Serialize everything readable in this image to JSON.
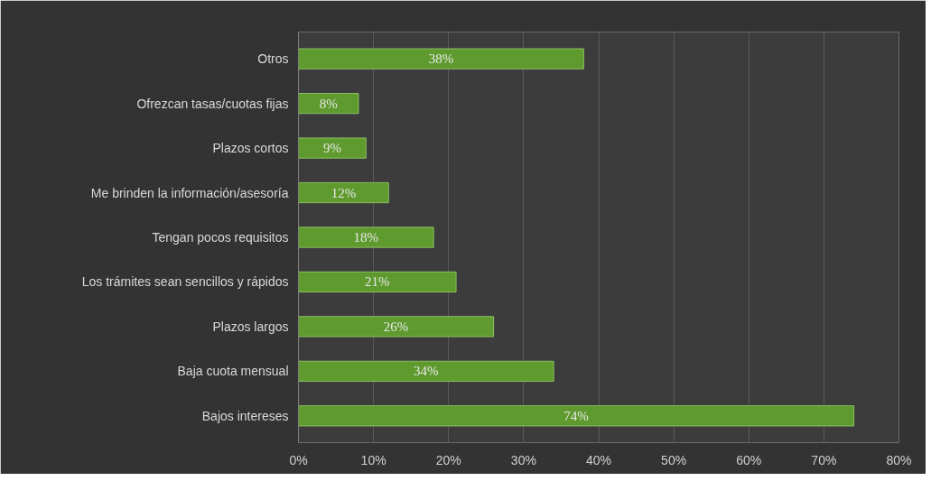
{
  "chart_data": {
    "type": "bar",
    "orientation": "horizontal",
    "categories": [
      "Otros",
      "Ofrezcan tasas/cuotas fijas",
      "Plazos cortos",
      "Me brinden la información/asesoría",
      "Tengan pocos requisitos",
      "Los trámites sean sencillos y rápidos",
      "Plazos largos",
      "Baja cuota mensual",
      "Bajos intereses"
    ],
    "values": [
      38,
      8,
      9,
      12,
      18,
      21,
      26,
      34,
      74
    ],
    "color": "#5e9a2e",
    "value_labels": [
      "38%",
      "8%",
      "9%",
      "12%",
      "18%",
      "21%",
      "26%",
      "34%",
      "74%"
    ],
    "xlim": [
      0,
      80
    ],
    "xticks": [
      {
        "value": 0,
        "label": "0%"
      },
      {
        "value": 10,
        "label": "10%"
      },
      {
        "value": 20,
        "label": "20%"
      },
      {
        "value": 30,
        "label": "30%"
      },
      {
        "value": 40,
        "label": "40%"
      },
      {
        "value": 50,
        "label": "50%"
      },
      {
        "value": 60,
        "label": "60%"
      },
      {
        "value": 70,
        "label": "70%"
      },
      {
        "value": 80,
        "label": "80%"
      }
    ],
    "grid": "x"
  }
}
